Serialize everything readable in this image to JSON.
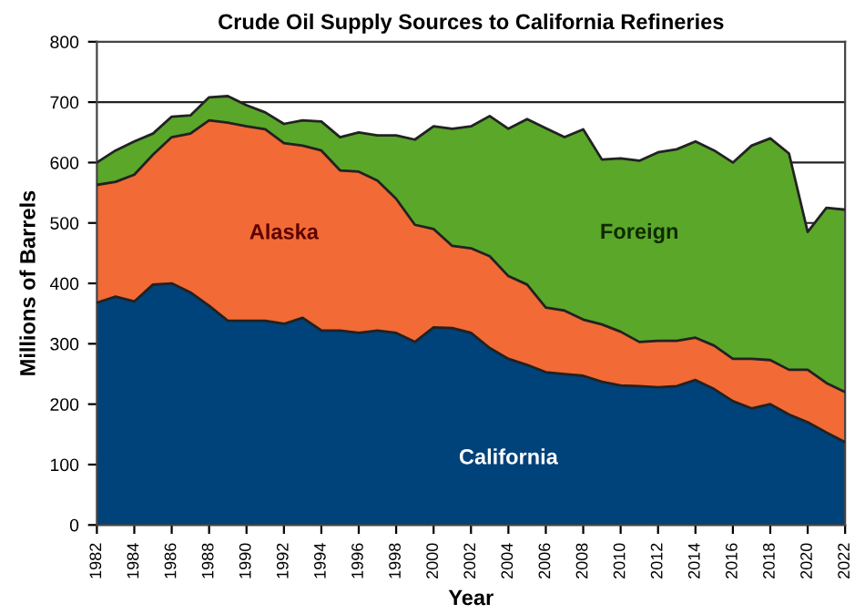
{
  "chart_data": {
    "type": "area",
    "stacked": true,
    "title": "Crude Oil Supply Sources to California Refineries",
    "xlabel": "Year",
    "ylabel": "Millions of Barrels",
    "x": [
      1982,
      1983,
      1984,
      1985,
      1986,
      1987,
      1988,
      1989,
      1990,
      1991,
      1992,
      1993,
      1994,
      1995,
      1996,
      1997,
      1998,
      1999,
      2000,
      2001,
      2002,
      2003,
      2004,
      2005,
      2006,
      2007,
      2008,
      2009,
      2010,
      2011,
      2012,
      2013,
      2014,
      2015,
      2016,
      2017,
      2018,
      2019,
      2020,
      2021,
      2022
    ],
    "series": [
      {
        "name": "California",
        "color": "#00427a",
        "values": [
          368,
          378,
          370,
          398,
          400,
          385,
          363,
          338,
          338,
          338,
          333,
          343,
          322,
          322,
          318,
          322,
          318,
          303,
          327,
          326,
          318,
          293,
          275,
          265,
          253,
          250,
          247,
          237,
          231,
          230,
          228,
          230,
          240,
          225,
          205,
          193,
          200,
          183,
          170,
          153,
          137
        ]
      },
      {
        "name": "Alaska",
        "color": "#f26a35",
        "values": [
          195,
          190,
          210,
          215,
          242,
          263,
          307,
          328,
          322,
          317,
          299,
          285,
          298,
          265,
          267,
          248,
          222,
          194,
          163,
          136,
          140,
          152,
          137,
          133,
          107,
          105,
          93,
          95,
          89,
          73,
          77,
          75,
          70,
          72,
          70,
          82,
          73,
          74,
          87,
          82,
          83
        ]
      },
      {
        "name": "Foreign",
        "color": "#5aa72a",
        "values": [
          37,
          52,
          55,
          35,
          34,
          30,
          38,
          44,
          35,
          28,
          32,
          42,
          48,
          55,
          65,
          75,
          105,
          141,
          170,
          194,
          202,
          232,
          244,
          274,
          297,
          287,
          315,
          273,
          287,
          300,
          312,
          317,
          325,
          323,
          325,
          353,
          367,
          358,
          228,
          290,
          302
        ]
      }
    ],
    "xlim": [
      1982,
      2022
    ],
    "xticks": [
      1982,
      1984,
      1986,
      1988,
      1990,
      1992,
      1994,
      1996,
      1998,
      2000,
      2002,
      2004,
      2006,
      2008,
      2010,
      2012,
      2014,
      2016,
      2018,
      2020,
      2022
    ],
    "ylim": [
      0,
      800
    ],
    "yticks": [
      0,
      100,
      200,
      300,
      400,
      500,
      600,
      700,
      800
    ],
    "grid": "y",
    "legend": false
  }
}
